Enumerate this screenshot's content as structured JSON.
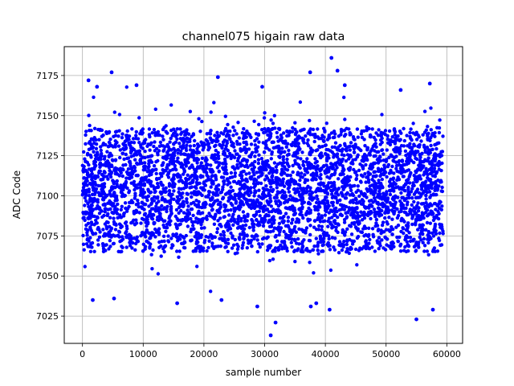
{
  "chart_data": {
    "type": "scatter",
    "title": "channel075 higain raw data",
    "xlabel": "sample number",
    "ylabel": "ADC Code",
    "xlim": [
      -3000,
      62600
    ],
    "ylim": [
      7008,
      7193
    ],
    "x_ticks": [
      0,
      10000,
      20000,
      30000,
      40000,
      50000,
      60000
    ],
    "x_tick_labels": [
      "0",
      "10000",
      "20000",
      "30000",
      "40000",
      "50000",
      "60000"
    ],
    "y_ticks": [
      7025,
      7050,
      7075,
      7100,
      7125,
      7150,
      7175
    ],
    "y_tick_labels": [
      "7025",
      "7050",
      "7075",
      "7100",
      "7125",
      "7150",
      "7175"
    ],
    "grid": true,
    "marker_color": "#0000ff",
    "sample_count": 60000,
    "center_value": 7105,
    "dense_band": [
      7065,
      7142
    ],
    "outliers": [
      {
        "x": 41000,
        "y": 7186
      },
      {
        "x": 22300,
        "y": 7174
      },
      {
        "x": 37500,
        "y": 7177
      },
      {
        "x": 42000,
        "y": 7178
      },
      {
        "x": 4800,
        "y": 7177
      },
      {
        "x": 29600,
        "y": 7168
      },
      {
        "x": 57200,
        "y": 7170
      },
      {
        "x": 8900,
        "y": 7169
      },
      {
        "x": 1000,
        "y": 7172
      },
      {
        "x": 2400,
        "y": 7168
      },
      {
        "x": 43200,
        "y": 7169
      },
      {
        "x": 52400,
        "y": 7166
      },
      {
        "x": 31000,
        "y": 7013
      },
      {
        "x": 31800,
        "y": 7021
      },
      {
        "x": 55000,
        "y": 7023
      },
      {
        "x": 40700,
        "y": 7029
      },
      {
        "x": 57700,
        "y": 7029
      },
      {
        "x": 28800,
        "y": 7031
      },
      {
        "x": 37600,
        "y": 7031
      },
      {
        "x": 38500,
        "y": 7033
      },
      {
        "x": 1700,
        "y": 7035
      },
      {
        "x": 22900,
        "y": 7035
      },
      {
        "x": 5200,
        "y": 7036
      },
      {
        "x": 15600,
        "y": 7033
      }
    ]
  }
}
